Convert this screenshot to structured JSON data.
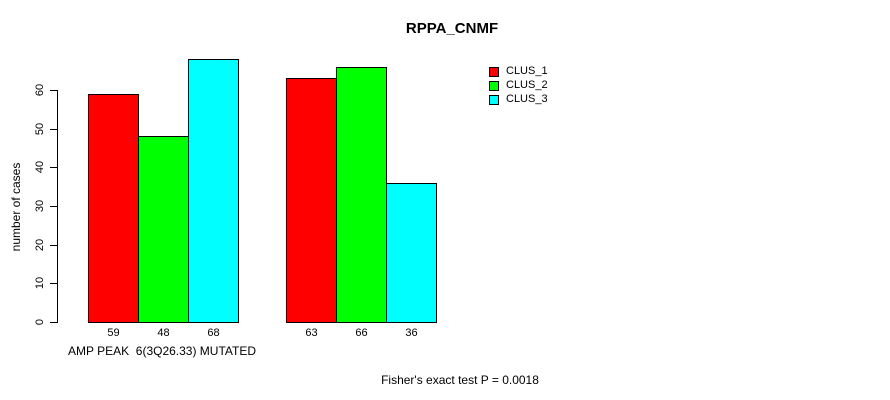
{
  "chart_data": {
    "type": "bar",
    "title": "RPPA_CNMF",
    "ylabel": "number of cases",
    "ylim": [
      0,
      60
    ],
    "yticks": [
      0,
      10,
      20,
      30,
      40,
      50,
      60
    ],
    "grid": false,
    "legend_position": "top-right",
    "categories": [
      "AMP PEAK  6(3Q26.33) MUTATED",
      ""
    ],
    "series": [
      {
        "name": "CLUS_1",
        "color": "#ff0000",
        "values": [
          59,
          63
        ]
      },
      {
        "name": "CLUS_2",
        "color": "#00ff00",
        "values": [
          48,
          66
        ]
      },
      {
        "name": "CLUS_3",
        "color": "#00ffff",
        "values": [
          68,
          36
        ]
      }
    ],
    "bar_value_labels": [
      [
        59,
        48,
        68
      ],
      [
        63,
        66,
        36
      ]
    ],
    "footnote": "Fisher's exact test P = 0.0018",
    "group_label": "AMP PEAK  6(3Q26.33) MUTATED"
  }
}
